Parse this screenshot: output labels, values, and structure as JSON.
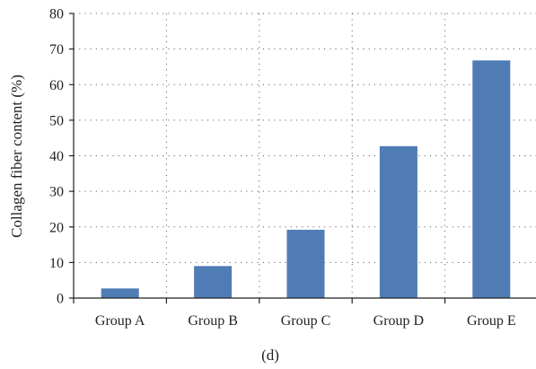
{
  "chart_data": {
    "type": "bar",
    "categories": [
      "Group A",
      "Group B",
      "Group C",
      "Group D",
      "Group E"
    ],
    "values": [
      2.7,
      9.0,
      19.2,
      42.7,
      66.8
    ],
    "ylabel": "Collagen fiber content (%)",
    "xlabel": "",
    "ylim": [
      0,
      80
    ],
    "yticks": [
      0,
      10,
      20,
      30,
      40,
      50,
      60,
      70,
      80
    ],
    "grid": true,
    "legend": "none",
    "bar_color": "#4f7cb5"
  },
  "caption": "(d)"
}
